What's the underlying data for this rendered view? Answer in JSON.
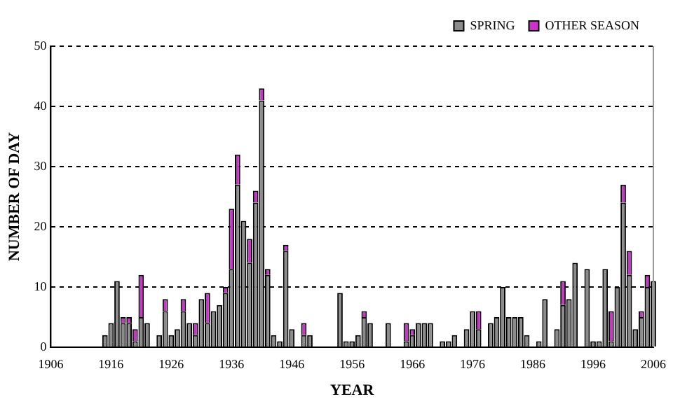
{
  "chart_data": {
    "type": "bar",
    "stacked": true,
    "xlabel": "YEAR",
    "ylabel": "NUMBER OF DAY",
    "x": [
      1915,
      1916,
      1917,
      1918,
      1919,
      1920,
      1921,
      1922,
      1924,
      1925,
      1926,
      1927,
      1928,
      1929,
      1930,
      1931,
      1932,
      1933,
      1934,
      1935,
      1936,
      1937,
      1938,
      1939,
      1940,
      1941,
      1942,
      1943,
      1944,
      1945,
      1946,
      1948,
      1949,
      1954,
      1955,
      1956,
      1957,
      1958,
      1959,
      1962,
      1965,
      1966,
      1967,
      1968,
      1969,
      1971,
      1972,
      1973,
      1975,
      1976,
      1977,
      1979,
      1980,
      1981,
      1982,
      1983,
      1984,
      1985,
      1987,
      1988,
      1990,
      1991,
      1992,
      1993,
      1995,
      1996,
      1997,
      1998,
      1999,
      2000,
      2001,
      2002,
      2003,
      2004,
      2005,
      2006
    ],
    "series": [
      {
        "name": "SPRING",
        "color": "#8c8c8c",
        "values": [
          2,
          4,
          11,
          4,
          4,
          1,
          5,
          4,
          2,
          6,
          2,
          3,
          6,
          4,
          2,
          8,
          4,
          6,
          7,
          9,
          13,
          27,
          21,
          14,
          24,
          41,
          12,
          2,
          1,
          16,
          3,
          2,
          2,
          9,
          1,
          1,
          2,
          5,
          4,
          4,
          1,
          2,
          4,
          4,
          4,
          1,
          1,
          2,
          3,
          6,
          3,
          4,
          5,
          10,
          5,
          5,
          5,
          2,
          1,
          8,
          3,
          7,
          8,
          14,
          13,
          1,
          1,
          13,
          1,
          10,
          24,
          12,
          3,
          5,
          10,
          11
        ]
      },
      {
        "name": "OTHER SEASON",
        "color": "#cc33cc",
        "values": [
          null,
          null,
          null,
          1,
          1,
          2,
          7,
          null,
          null,
          2,
          null,
          null,
          2,
          null,
          2,
          null,
          5,
          null,
          null,
          1,
          10,
          5,
          null,
          4,
          2,
          2,
          1,
          null,
          null,
          1,
          null,
          2,
          null,
          null,
          null,
          null,
          null,
          1,
          null,
          null,
          3,
          1,
          null,
          null,
          null,
          null,
          null,
          null,
          null,
          null,
          3,
          null,
          null,
          null,
          null,
          null,
          null,
          null,
          null,
          null,
          null,
          4,
          null,
          null,
          null,
          null,
          null,
          null,
          5,
          null,
          3,
          4,
          null,
          1,
          2,
          null
        ]
      }
    ],
    "xlim": [
      1906,
      2006
    ],
    "xticks": [
      1906,
      1916,
      1926,
      1936,
      1946,
      1956,
      1966,
      1976,
      1986,
      1996,
      2006
    ],
    "ylim": [
      0,
      50
    ],
    "yticks": [
      0,
      10,
      20,
      30,
      40,
      50
    ],
    "grid": "y",
    "legend": "top right"
  }
}
